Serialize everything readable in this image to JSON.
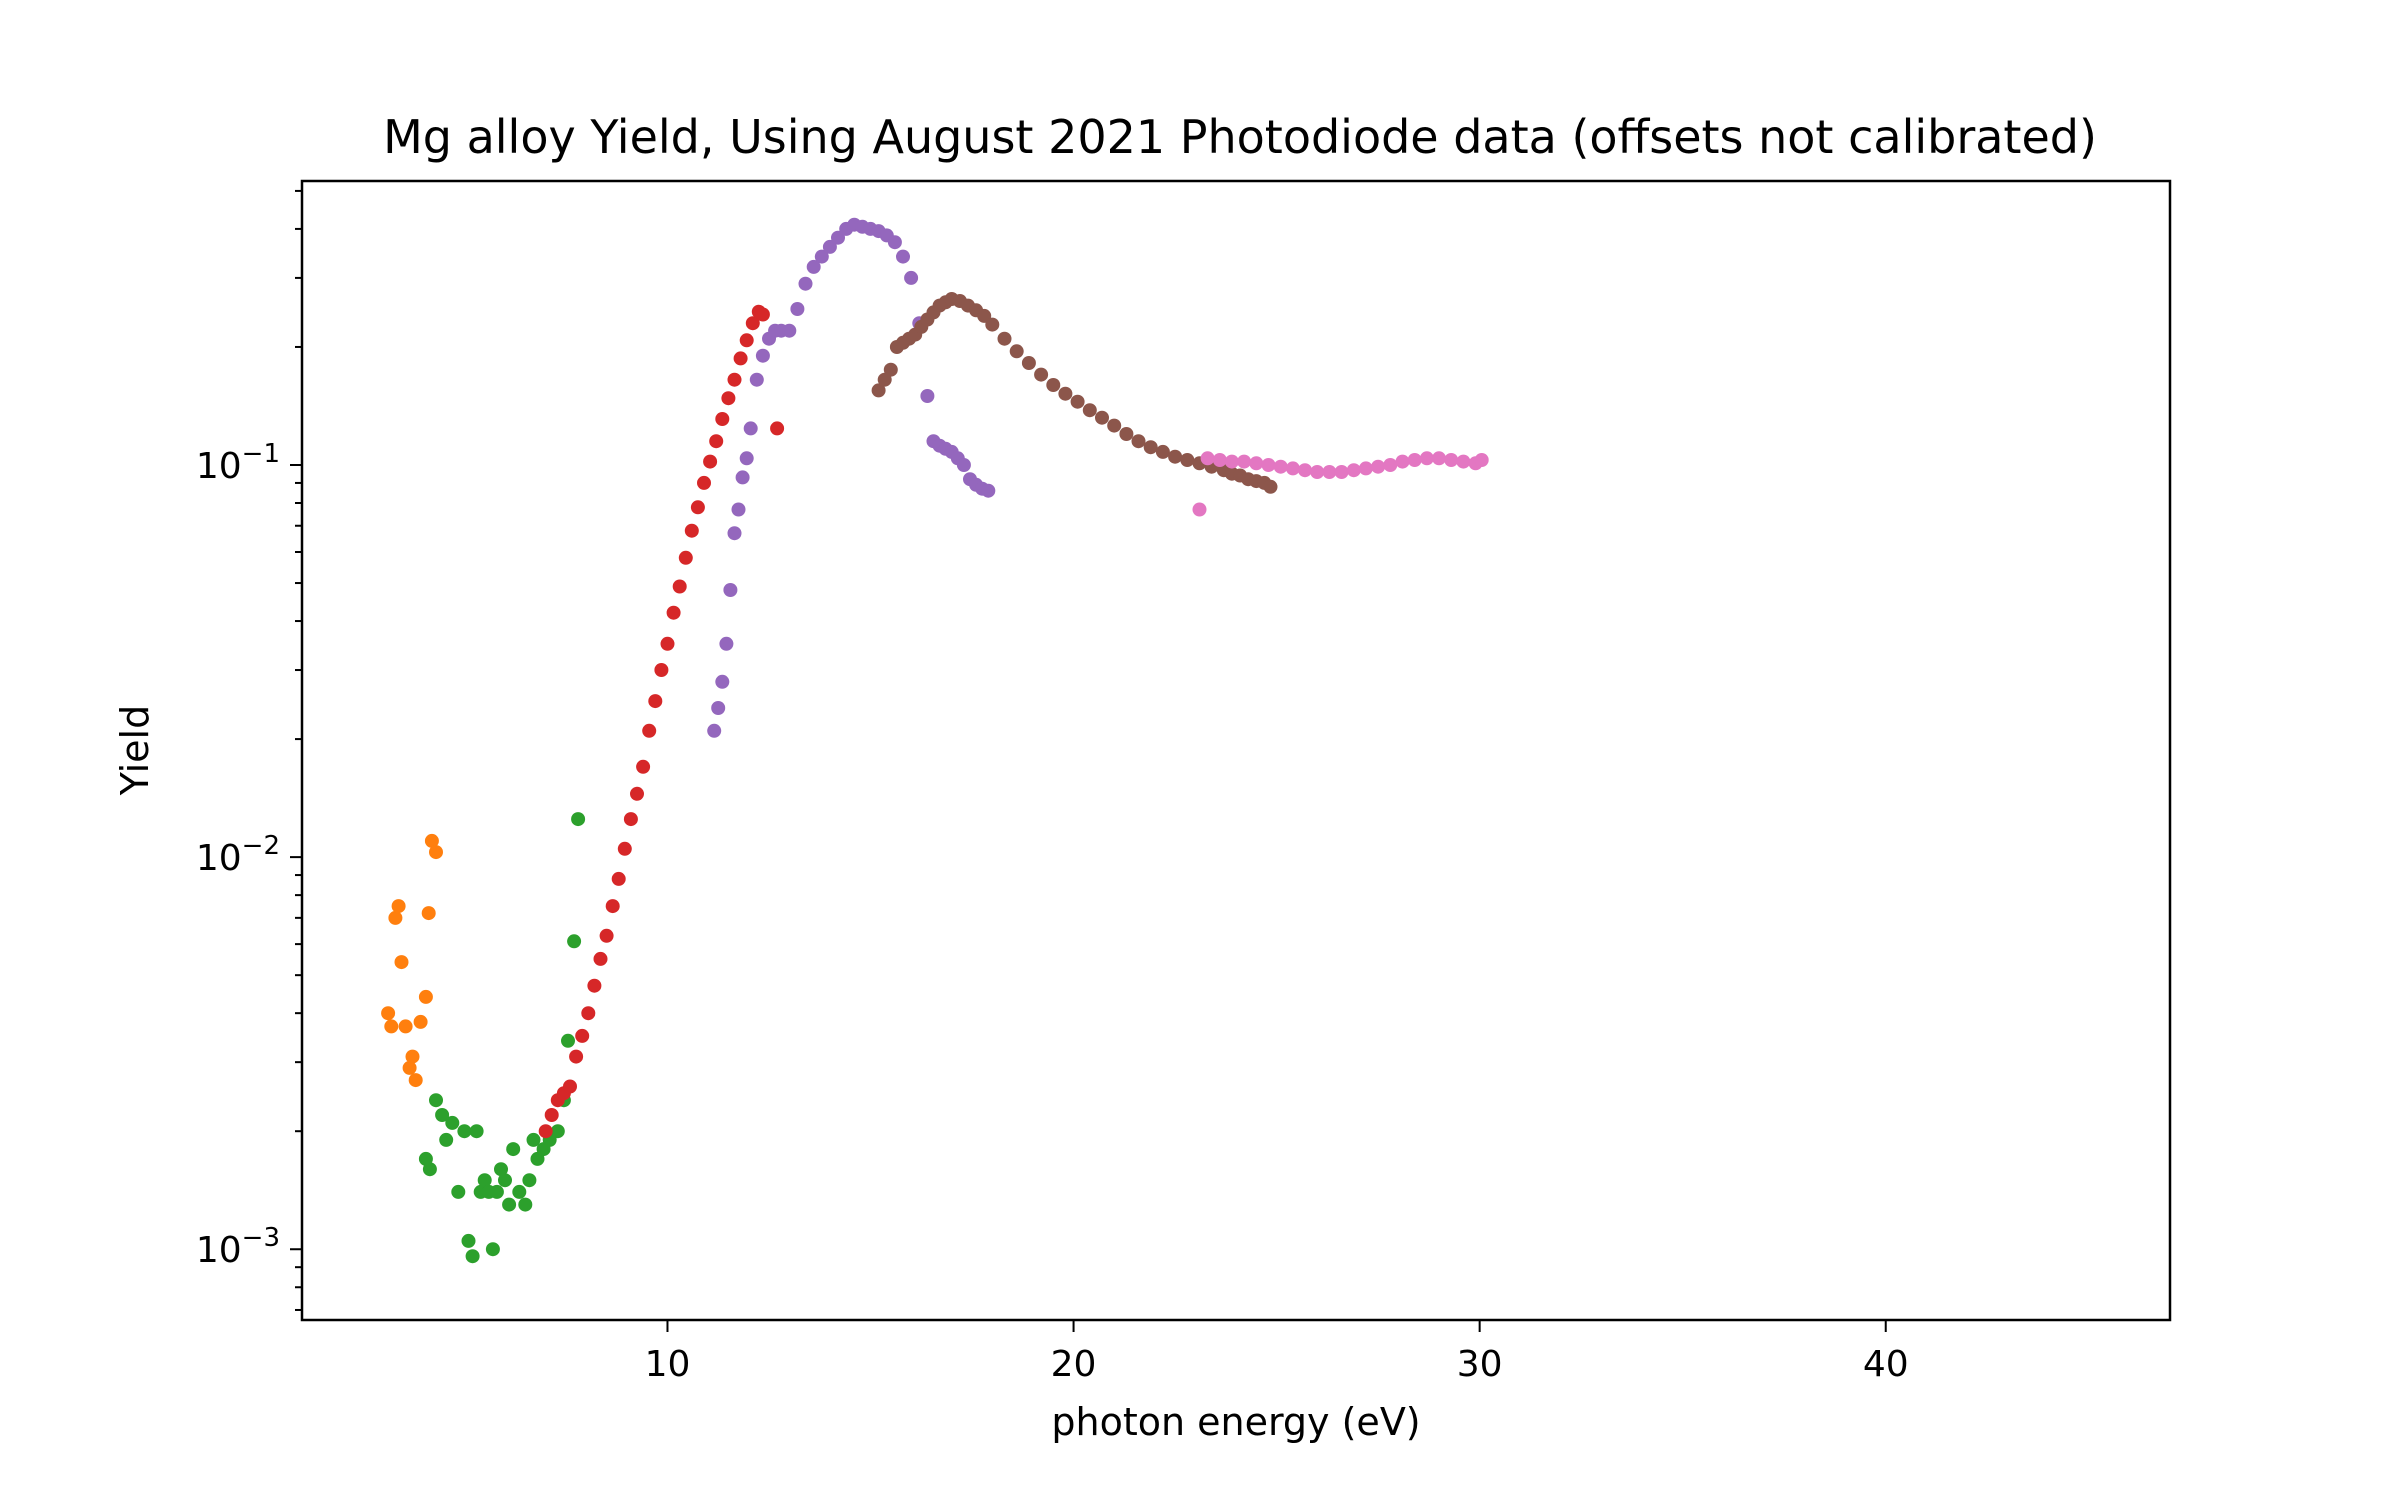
{
  "chart_data": {
    "type": "scatter",
    "title": "Mg alloy Yield, Using August 2021 Photodiode data  (offsets not calibrated)",
    "xlabel": "photon energy (eV)",
    "ylabel": "Yield",
    "xlim": [
      1.0,
      47.0
    ],
    "ylim": [
      0.00066,
      0.53
    ],
    "yscale": "log",
    "grid": false,
    "x_ticks": [
      {
        "value": 10,
        "label": "10"
      },
      {
        "value": 20,
        "label": "20"
      },
      {
        "value": 30,
        "label": "30"
      },
      {
        "value": 40,
        "label": "40"
      }
    ],
    "y_ticks": [
      {
        "value": 0.001,
        "base": "10",
        "exp": "−3"
      },
      {
        "value": 0.01,
        "base": "10",
        "exp": "−2"
      },
      {
        "value": 0.1,
        "base": "10",
        "exp": "−1"
      }
    ],
    "series": [
      {
        "color": "#ff7f0e",
        "x": [
          3.12,
          3.2,
          3.3,
          3.38,
          3.45,
          3.55,
          3.65,
          3.72,
          3.8,
          3.92,
          4.05,
          4.12,
          4.2,
          4.3
        ],
        "y": [
          0.004,
          0.0037,
          0.007,
          0.0075,
          0.0054,
          0.0037,
          0.0029,
          0.0031,
          0.0027,
          0.0038,
          0.0044,
          0.0072,
          0.011,
          0.0103
        ]
      },
      {
        "color": "#2ca02c",
        "x": [
          4.05,
          4.15,
          4.3,
          4.45,
          4.55,
          4.7,
          4.85,
          5.0,
          5.1,
          5.2,
          5.3,
          5.4,
          5.5,
          5.6,
          5.7,
          5.8,
          5.9,
          6.0,
          6.1,
          6.2,
          6.35,
          6.5,
          6.6,
          6.7,
          6.8,
          6.95,
          7.1,
          7.3,
          7.45,
          7.55,
          7.7,
          7.8
        ],
        "y": [
          0.0017,
          0.0016,
          0.0024,
          0.0022,
          0.0019,
          0.0021,
          0.0014,
          0.002,
          0.00105,
          0.00096,
          0.002,
          0.0014,
          0.0015,
          0.0014,
          0.001,
          0.0014,
          0.0016,
          0.0015,
          0.0013,
          0.0018,
          0.0014,
          0.0013,
          0.0015,
          0.0019,
          0.0017,
          0.0018,
          0.0019,
          0.002,
          0.0024,
          0.0034,
          0.0061,
          0.0125
        ]
      },
      {
        "color": "#d62728",
        "x": [
          7.0,
          7.15,
          7.3,
          7.45,
          7.6,
          7.75,
          7.9,
          8.05,
          8.2,
          8.35,
          8.5,
          8.65,
          8.8,
          8.95,
          9.1,
          9.25,
          9.4,
          9.55,
          9.7,
          9.85,
          10.0,
          10.15,
          10.3,
          10.45,
          10.6,
          10.75,
          10.9,
          11.05,
          11.2,
          11.35,
          11.5,
          11.65,
          11.8,
          11.95
        ],
        "y": [
          0.002,
          0.0022,
          0.0024,
          0.0025,
          0.0026,
          0.0031,
          0.0035,
          0.004,
          0.0047,
          0.0055,
          0.0063,
          0.0075,
          0.0088,
          0.0105,
          0.0125,
          0.0145,
          0.017,
          0.021,
          0.025,
          0.03,
          0.035,
          0.042,
          0.049,
          0.058,
          0.068,
          0.078,
          0.09,
          0.102,
          0.115,
          0.131,
          0.148,
          0.165,
          0.187,
          0.208
        ]
      },
      {
        "color": "#d62728",
        "x": [
          12.1,
          12.25,
          12.35
        ],
        "y": [
          0.23,
          0.246,
          0.242
        ]
      },
      {
        "color": "#d62728",
        "x": [
          12.7
        ],
        "y": [
          0.124
        ]
      },
      {
        "color": "#9467bd",
        "x": [
          11.15,
          11.25,
          11.35,
          11.45,
          11.55,
          11.65,
          11.75,
          11.85,
          11.95,
          12.05,
          12.2,
          12.35,
          12.5,
          12.65,
          12.8,
          13.0,
          13.2,
          13.4,
          13.6,
          13.8,
          14.0,
          14.2,
          14.4,
          14.6,
          14.8,
          15.0,
          15.2,
          15.4,
          15.6,
          15.8,
          16.0,
          16.2,
          16.4,
          16.55,
          16.7,
          16.85,
          17.0,
          17.15,
          17.3,
          17.45,
          17.6,
          17.75,
          17.9
        ],
        "y": [
          0.021,
          0.024,
          0.028,
          0.035,
          0.048,
          0.067,
          0.077,
          0.093,
          0.104,
          0.124,
          0.165,
          0.19,
          0.21,
          0.22,
          0.22,
          0.22,
          0.25,
          0.29,
          0.32,
          0.34,
          0.36,
          0.38,
          0.4,
          0.41,
          0.405,
          0.4,
          0.395,
          0.385,
          0.37,
          0.34,
          0.3,
          0.23,
          0.15,
          0.115,
          0.112,
          0.11,
          0.108,
          0.104,
          0.1,
          0.092,
          0.089,
          0.087,
          0.086
        ]
      },
      {
        "color": "#8c564b",
        "x": [
          15.2,
          15.35,
          15.5,
          15.65,
          15.8,
          15.95,
          16.1,
          16.25,
          16.4,
          16.55,
          16.7,
          16.85,
          17.0,
          17.2,
          17.4,
          17.6,
          17.8,
          18.0,
          18.3,
          18.6,
          18.9,
          19.2,
          19.5,
          19.8,
          20.1,
          20.4,
          20.7,
          21.0,
          21.3,
          21.6,
          21.9,
          22.2,
          22.5,
          22.8,
          23.1,
          23.4,
          23.7,
          23.9,
          24.1,
          24.3,
          24.5,
          24.7,
          24.85
        ],
        "y": [
          0.155,
          0.165,
          0.175,
          0.2,
          0.205,
          0.21,
          0.215,
          0.225,
          0.235,
          0.245,
          0.255,
          0.26,
          0.265,
          0.262,
          0.255,
          0.248,
          0.24,
          0.228,
          0.21,
          0.195,
          0.182,
          0.17,
          0.16,
          0.152,
          0.145,
          0.138,
          0.132,
          0.126,
          0.12,
          0.115,
          0.111,
          0.108,
          0.105,
          0.103,
          0.101,
          0.099,
          0.097,
          0.095,
          0.094,
          0.092,
          0.091,
          0.09,
          0.088
        ]
      },
      {
        "color": "#e377c2",
        "x": [
          23.1,
          23.3,
          23.6,
          23.9,
          24.2,
          24.5,
          24.8,
          25.1,
          25.4,
          25.7,
          26.0,
          26.3,
          26.6,
          26.9,
          27.2,
          27.5,
          27.8,
          28.1,
          28.4,
          28.7,
          29.0,
          29.3,
          29.6,
          29.9,
          30.05
        ],
        "y": [
          0.077,
          0.104,
          0.103,
          0.102,
          0.102,
          0.101,
          0.1,
          0.099,
          0.098,
          0.097,
          0.096,
          0.096,
          0.096,
          0.097,
          0.098,
          0.099,
          0.1,
          0.102,
          0.103,
          0.104,
          0.104,
          0.103,
          0.102,
          0.101,
          0.103
        ]
      }
    ]
  }
}
